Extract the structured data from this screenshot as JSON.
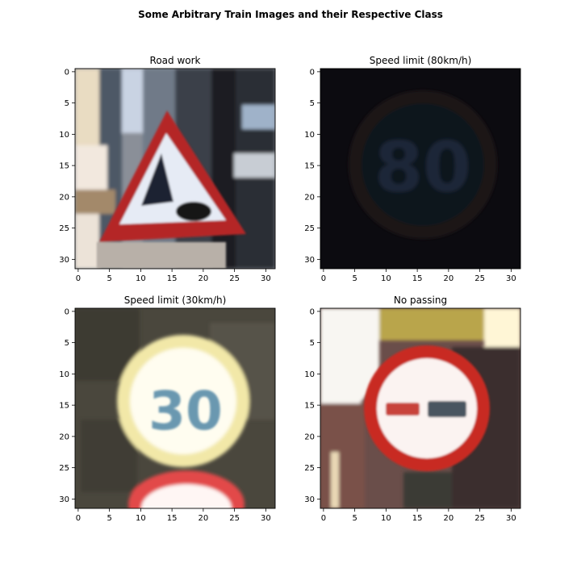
{
  "figure_title": "Some Arbitrary Train Images and their Respective Class",
  "chart_data": [
    {
      "type": "image",
      "title": "Road work",
      "xlim": [
        -0.5,
        31.5
      ],
      "ylim": [
        31.5,
        -0.5
      ],
      "xticks": [
        0,
        5,
        10,
        15,
        20,
        25,
        30
      ],
      "yticks": [
        0,
        5,
        10,
        15,
        20,
        25,
        30
      ],
      "image_description_colors": {
        "background": "#8a8f98",
        "sign_border": "#b02828",
        "sign_fill": "#e8ecf4"
      }
    },
    {
      "type": "image",
      "title": "Speed limit (80km/h)",
      "xlim": [
        -0.5,
        31.5
      ],
      "ylim": [
        31.5,
        -0.5
      ],
      "xticks": [
        0,
        5,
        10,
        15,
        20,
        25,
        30
      ],
      "yticks": [
        0,
        5,
        10,
        15,
        20,
        25,
        30
      ],
      "image_description_colors": {
        "background": "#0c0b10",
        "sign_border": "#1e1420",
        "sign_fill": "#121a2a"
      }
    },
    {
      "type": "image",
      "title": "Speed limit (30km/h)",
      "xlim": [
        -0.5,
        31.5
      ],
      "ylim": [
        31.5,
        -0.5
      ],
      "xticks": [
        0,
        5,
        10,
        15,
        20,
        25,
        30
      ],
      "yticks": [
        0,
        5,
        10,
        15,
        20,
        25,
        30
      ],
      "image_description_colors": {
        "background": "#4a473d",
        "sign_border": "#f4ecb0",
        "sign_fill": "#fffbe8"
      }
    },
    {
      "type": "image",
      "title": "No passing",
      "xlim": [
        -0.5,
        31.5
      ],
      "ylim": [
        31.5,
        -0.5
      ],
      "xticks": [
        0,
        5,
        10,
        15,
        20,
        25,
        30
      ],
      "yticks": [
        0,
        5,
        10,
        15,
        20,
        25,
        30
      ],
      "image_description_colors": {
        "background": "#6a4e4a",
        "sign_border": "#c82a24",
        "sign_fill": "#fbf3f1"
      }
    }
  ]
}
